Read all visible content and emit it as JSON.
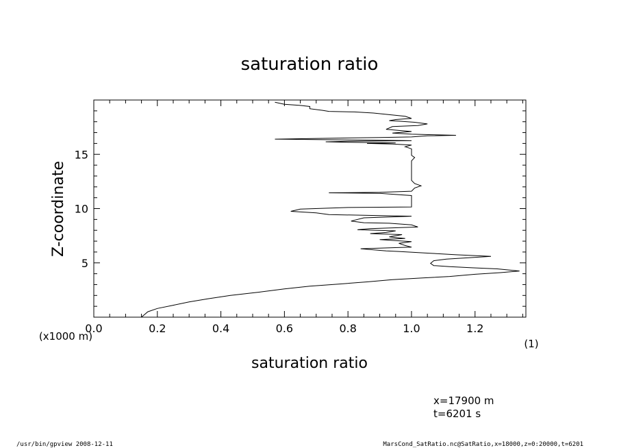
{
  "chart_data": {
    "type": "line",
    "title": "saturation ratio",
    "xlabel": "saturation ratio",
    "xunit": "(1)",
    "ylabel": "Z-coordinate",
    "yunit": "(x1000 m)",
    "xlim": [
      0.0,
      1.36
    ],
    "ylim": [
      0,
      20
    ],
    "xticks": [
      "0.0",
      "0.2",
      "0.4",
      "0.6",
      "0.8",
      "1.0",
      "1.2"
    ],
    "yticks": [
      "5",
      "10",
      "15"
    ],
    "grid": false,
    "series": [
      {
        "points": [
          [
            0.15,
            0.0
          ],
          [
            0.17,
            0.5
          ],
          [
            0.2,
            0.8
          ],
          [
            0.25,
            1.1
          ],
          [
            0.3,
            1.4
          ],
          [
            0.36,
            1.7
          ],
          [
            0.43,
            2.0
          ],
          [
            0.52,
            2.3
          ],
          [
            0.6,
            2.6
          ],
          [
            0.68,
            2.85
          ],
          [
            0.77,
            3.05
          ],
          [
            0.86,
            3.25
          ],
          [
            0.94,
            3.45
          ],
          [
            1.03,
            3.6
          ],
          [
            1.12,
            3.75
          ],
          [
            1.2,
            3.95
          ],
          [
            1.28,
            4.1
          ],
          [
            1.34,
            4.25
          ],
          [
            1.27,
            4.45
          ],
          [
            1.19,
            4.55
          ],
          [
            1.12,
            4.65
          ],
          [
            1.07,
            4.75
          ],
          [
            1.06,
            4.95
          ],
          [
            1.07,
            5.2
          ],
          [
            1.11,
            5.35
          ],
          [
            1.25,
            5.6
          ],
          [
            1.14,
            5.75
          ],
          [
            1.05,
            5.9
          ],
          [
            0.96,
            6.05
          ],
          [
            0.92,
            6.1
          ],
          [
            0.84,
            6.3
          ],
          [
            0.94,
            6.4
          ],
          [
            1.0,
            6.45
          ],
          [
            0.98,
            6.6
          ],
          [
            0.96,
            6.8
          ],
          [
            1.0,
            6.95
          ],
          [
            0.9,
            7.15
          ],
          [
            0.98,
            7.25
          ],
          [
            0.93,
            7.4
          ],
          [
            0.97,
            7.6
          ],
          [
            0.87,
            7.7
          ],
          [
            0.92,
            7.8
          ],
          [
            0.95,
            7.95
          ],
          [
            0.83,
            8.05
          ],
          [
            0.87,
            8.15
          ],
          [
            1.02,
            8.3
          ],
          [
            1.0,
            8.5
          ],
          [
            0.93,
            8.65
          ],
          [
            0.85,
            8.7
          ],
          [
            0.81,
            8.85
          ],
          [
            0.85,
            9.15
          ],
          [
            1.0,
            9.3
          ],
          [
            0.9,
            9.35
          ],
          [
            0.74,
            9.45
          ],
          [
            0.7,
            9.6
          ],
          [
            0.62,
            9.75
          ],
          [
            0.65,
            9.95
          ],
          [
            0.8,
            10.1
          ],
          [
            1.0,
            10.15
          ],
          [
            1.0,
            10.35
          ],
          [
            1.0,
            10.6
          ],
          [
            1.0,
            10.85
          ],
          [
            1.0,
            11.2
          ],
          [
            0.9,
            11.4
          ],
          [
            0.74,
            11.45
          ],
          [
            0.9,
            11.5
          ],
          [
            1.0,
            11.6
          ],
          [
            1.01,
            11.9
          ],
          [
            1.03,
            12.1
          ],
          [
            1.01,
            12.3
          ],
          [
            1.0,
            12.6
          ],
          [
            1.0,
            13.0
          ],
          [
            1.0,
            13.5
          ],
          [
            1.0,
            14.0
          ],
          [
            1.0,
            14.4
          ],
          [
            1.01,
            14.7
          ],
          [
            1.0,
            14.9
          ],
          [
            1.0,
            15.2
          ],
          [
            1.0,
            15.5
          ],
          [
            0.98,
            15.7
          ],
          [
            1.0,
            15.85
          ],
          [
            0.94,
            15.95
          ],
          [
            0.86,
            16.0
          ],
          [
            0.95,
            16.05
          ],
          [
            0.81,
            16.1
          ],
          [
            0.73,
            16.15
          ],
          [
            0.8,
            16.2
          ],
          [
            1.0,
            16.25
          ],
          [
            0.88,
            16.3
          ],
          [
            0.57,
            16.4
          ],
          [
            0.9,
            16.55
          ],
          [
            1.0,
            16.6
          ],
          [
            1.05,
            16.7
          ],
          [
            1.14,
            16.75
          ],
          [
            1.0,
            16.85
          ],
          [
            0.94,
            16.95
          ],
          [
            1.0,
            17.1
          ],
          [
            0.92,
            17.3
          ],
          [
            0.94,
            17.55
          ],
          [
            1.02,
            17.65
          ],
          [
            1.05,
            17.8
          ],
          [
            1.01,
            17.95
          ],
          [
            0.96,
            18.05
          ],
          [
            0.93,
            18.1
          ],
          [
            0.95,
            18.2
          ],
          [
            1.0,
            18.3
          ],
          [
            0.98,
            18.5
          ],
          [
            0.93,
            18.65
          ],
          [
            0.88,
            18.8
          ],
          [
            0.82,
            18.9
          ],
          [
            0.74,
            18.95
          ],
          [
            0.72,
            19.05
          ],
          [
            0.68,
            19.2
          ],
          [
            0.68,
            19.4
          ],
          [
            0.65,
            19.5
          ],
          [
            0.6,
            19.6
          ],
          [
            0.57,
            19.8
          ]
        ]
      }
    ]
  },
  "annotations": {
    "position": "x=17900  m",
    "time": "t=6201  s",
    "footer_left": "/usr/bin/gpview   2008-12-11",
    "footer_right": "MarsCond_SatRatio.nc@SatRatio,x=18000,z=0:20000,t=6201"
  }
}
